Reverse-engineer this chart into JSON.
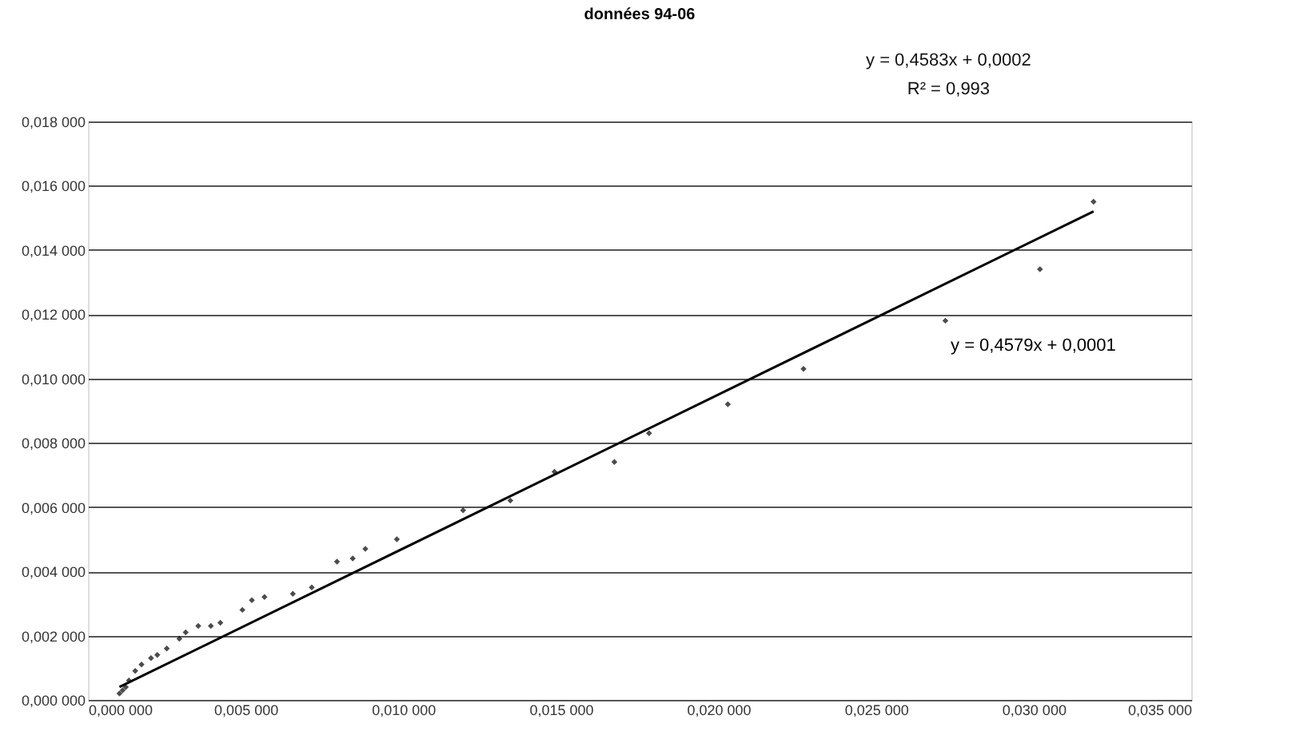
{
  "chart_data": {
    "type": "scatter",
    "title": "données 94-06",
    "annotations": [
      "y = 0,4583x + 0,0002",
      "R² = 0,993"
    ],
    "series": [
      {
        "color": "#000000",
        "marker": "diamond",
        "x": [
          0.001,
          0.0011,
          0.0012,
          0.0013,
          0.0015,
          0.0017,
          0.002,
          0.0022,
          0.0025,
          0.0029,
          0.0031,
          0.0035,
          0.0039,
          0.0042,
          0.0049,
          0.0052,
          0.0056,
          0.0065,
          0.0071,
          0.0079,
          0.0084,
          0.0088,
          0.0098,
          0.0119,
          0.0134,
          0.0148,
          0.0167,
          0.0178,
          0.0203,
          0.0227,
          0.0272,
          0.0302,
          0.0319
        ],
        "values": [
          0.0002,
          0.0003,
          0.0004,
          0.0006,
          0.0009,
          0.0011,
          0.0013,
          0.0014,
          0.0016,
          0.0019,
          0.0021,
          0.0023,
          0.0023,
          0.0024,
          0.0028,
          0.0031,
          0.0032,
          0.0033,
          0.0035,
          0.0043,
          0.0044,
          0.0047,
          0.005,
          0.0059,
          0.0062,
          0.0071,
          0.0074,
          0.0083,
          0.0092,
          0.0103,
          0.0118,
          0.0134,
          0.0155
        ]
      },
      {
        "type": "line",
        "name": "y = 0,4579x + 0,0001",
        "color": "#000000",
        "line_style": "solid",
        "x": [
          0.001,
          0.0319
        ],
        "values": [
          0.0004,
          0.0152
        ]
      }
    ],
    "xlim": [
      0,
      0.035
    ],
    "ylim": [
      0,
      0.018
    ],
    "xticks": [
      {
        "value": 0,
        "label": "0,000 000"
      },
      {
        "value": 0.005,
        "label": "0,005 000"
      },
      {
        "value": 0.01,
        "label": "0,010 000"
      },
      {
        "value": 0.015,
        "label": "0,015 000"
      },
      {
        "value": 0.02,
        "label": "0,020 000"
      },
      {
        "value": 0.025,
        "label": "0,025 000"
      },
      {
        "value": 0.03,
        "label": "0,030 000"
      },
      {
        "value": 0.035,
        "label": "0,035 000"
      }
    ],
    "yticks": [
      {
        "value": 0,
        "label": "0,000 000"
      },
      {
        "value": 0.002,
        "label": "0,002 000"
      },
      {
        "value": 0.004,
        "label": "0,004 000"
      },
      {
        "value": 0.006,
        "label": "0,006 000"
      },
      {
        "value": 0.008,
        "label": "0,008 000"
      },
      {
        "value": 0.01,
        "label": "0,010 000"
      },
      {
        "value": 0.012,
        "label": "0,012 000"
      },
      {
        "value": 0.014,
        "label": "0,014 000"
      },
      {
        "value": 0.016,
        "label": "0,016 000"
      },
      {
        "value": 0.018,
        "label": "0,018 000"
      }
    ],
    "grid": "y"
  }
}
